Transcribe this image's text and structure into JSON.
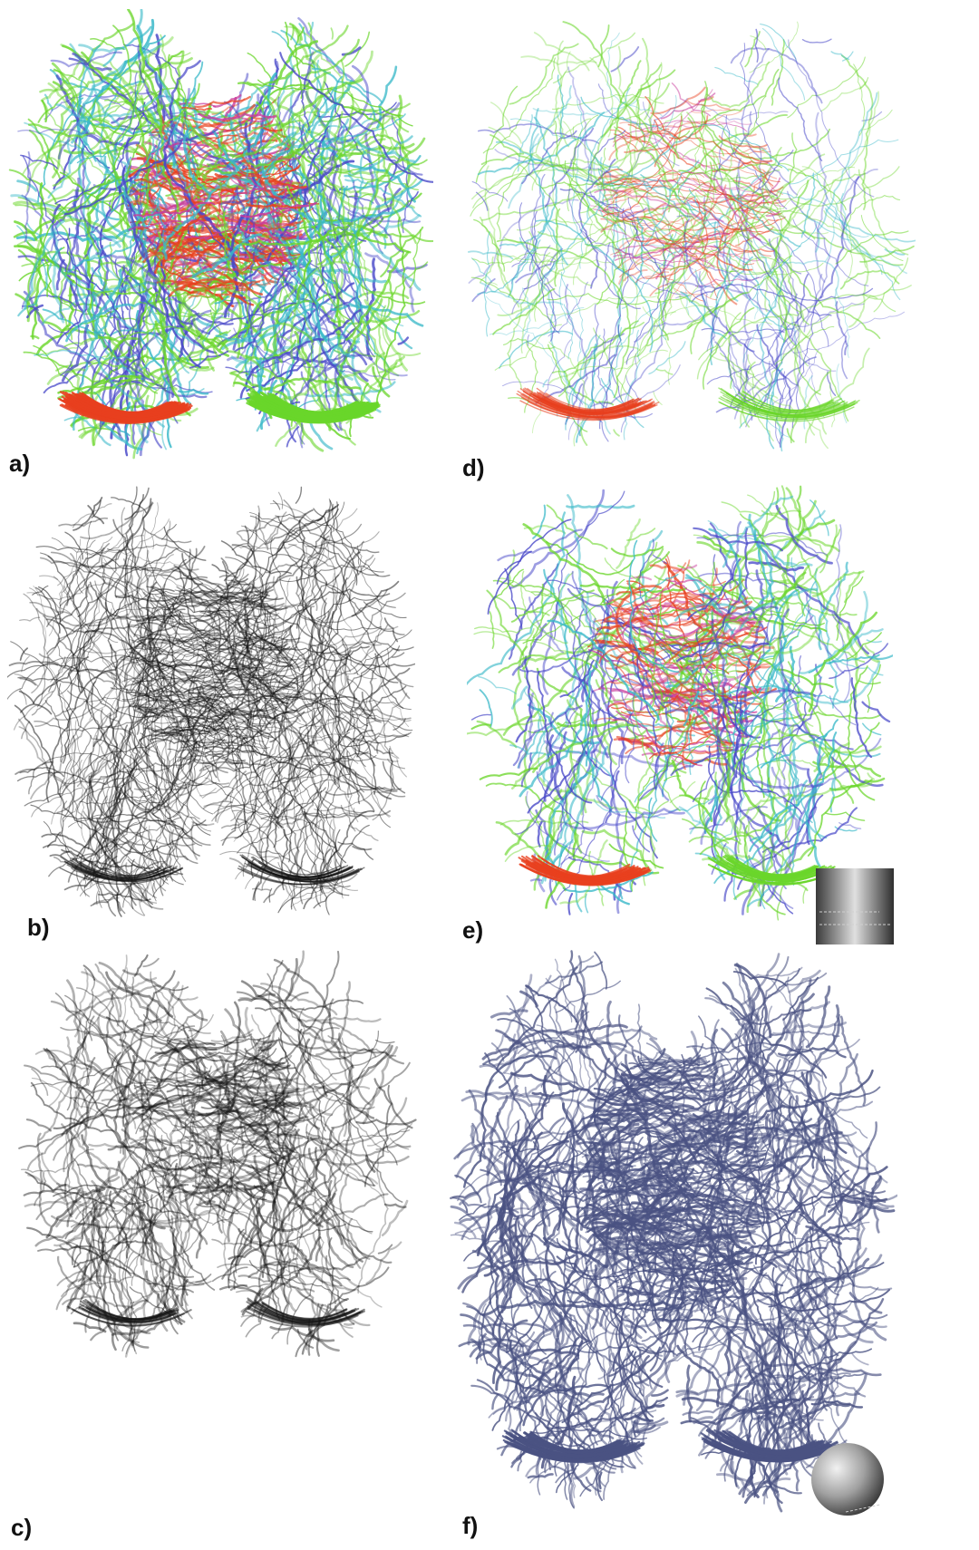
{
  "figure": {
    "panels": [
      {
        "id": "a",
        "label": "a)",
        "style": "direction-colored dense fibers"
      },
      {
        "id": "b",
        "label": "b)",
        "style": "black line fibers"
      },
      {
        "id": "c",
        "label": "c)",
        "style": "sparse black line fibers"
      },
      {
        "id": "d",
        "label": "d)",
        "style": "direction-colored sparse fibers"
      },
      {
        "id": "e",
        "label": "e)",
        "style": "direction-colored illuminated fibers",
        "inset": "gradient-swatch"
      },
      {
        "id": "f",
        "label": "f)",
        "style": "shaded blue fibers",
        "inset": "shading-sphere"
      }
    ]
  },
  "colors": {
    "background": "#ffffff",
    "label": "#111111",
    "fiber_red": "#e8401e",
    "fiber_green": "#6ad62a",
    "fiber_blue": "#4848c8",
    "fiber_cyan": "#38b8c8",
    "fiber_magenta": "#c83c9c",
    "fiber_black": "#141414",
    "fiber_slate": "#4a5282"
  }
}
